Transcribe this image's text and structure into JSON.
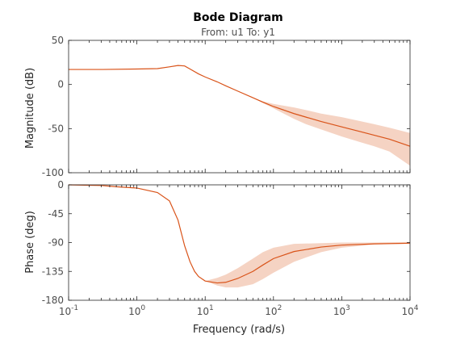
{
  "chart_data": {
    "type": "line",
    "title": "Bode Diagram",
    "subtitle": "From: u1  To: y1",
    "xlabel": "Frequency  (rad/s)",
    "x_scale": "log",
    "xlim": [
      0.1,
      10000
    ],
    "x_tick_base": "10",
    "x_tick_exponents": [
      "-1",
      "0",
      "1",
      "2",
      "3",
      "4"
    ],
    "colors": {
      "line": "#d95319",
      "band": "#f5d3c3",
      "axes": "#262626"
    },
    "panels": [
      {
        "name": "magnitude",
        "ylabel": "Magnitude (dB)",
        "ylim": [
          -100,
          50
        ],
        "yticks": [
          "50",
          "0",
          "-50",
          "-100"
        ],
        "x": [
          0.1,
          0.3,
          1,
          2,
          3,
          4,
          5,
          6,
          8,
          10,
          15,
          20,
          30,
          50,
          70,
          100,
          200,
          300,
          500,
          1000,
          2000,
          3000,
          5000,
          10000
        ],
        "values": [
          17,
          17,
          17.5,
          18,
          20,
          21.5,
          21,
          17.5,
          12,
          8.5,
          3,
          -1.5,
          -7.5,
          -15,
          -20,
          -25,
          -33,
          -37,
          -42,
          -48,
          -54,
          -57.5,
          -62,
          -70
        ],
        "band_upper": [
          17,
          17,
          17.5,
          18,
          20,
          21.5,
          21,
          17.5,
          12,
          8.5,
          3,
          -1.5,
          -7.5,
          -15,
          -19,
          -22,
          -26,
          -29,
          -33,
          -37,
          -42,
          -45,
          -49,
          -55
        ],
        "band_lower": [
          17,
          17,
          17.5,
          18,
          20,
          21.5,
          21,
          17.5,
          12,
          8.5,
          3,
          -1.5,
          -7.5,
          -15,
          -21,
          -27,
          -39,
          -45,
          -51,
          -59,
          -66,
          -70,
          -76,
          -92
        ]
      },
      {
        "name": "phase",
        "ylabel": "Phase (deg)",
        "ylim": [
          -180,
          0
        ],
        "yticks": [
          "0",
          "-45",
          "-90",
          "-135",
          "-180"
        ],
        "x": [
          0.1,
          0.3,
          0.5,
          1,
          2,
          3,
          4,
          5,
          6,
          7,
          8,
          10,
          15,
          20,
          30,
          50,
          70,
          100,
          200,
          500,
          1000,
          3000,
          10000
        ],
        "values": [
          0,
          -1,
          -3,
          -5,
          -12,
          -25,
          -55,
          -95,
          -120,
          -135,
          -143,
          -150,
          -153,
          -152,
          -146,
          -135,
          -125,
          -115,
          -104,
          -97,
          -94,
          -92,
          -91
        ],
        "band_upper": [
          0,
          -1,
          -3,
          -5,
          -12,
          -25,
          -55,
          -95,
          -120,
          -135,
          -143,
          -150,
          -145,
          -140,
          -130,
          -115,
          -105,
          -98,
          -92,
          -91,
          -90,
          -90,
          -89
        ],
        "band_lower": [
          0,
          -1,
          -3,
          -5,
          -12,
          -25,
          -55,
          -95,
          -120,
          -135,
          -143,
          -150,
          -157,
          -160,
          -160,
          -155,
          -147,
          -137,
          -120,
          -105,
          -98,
          -93,
          -92
        ]
      }
    ]
  }
}
